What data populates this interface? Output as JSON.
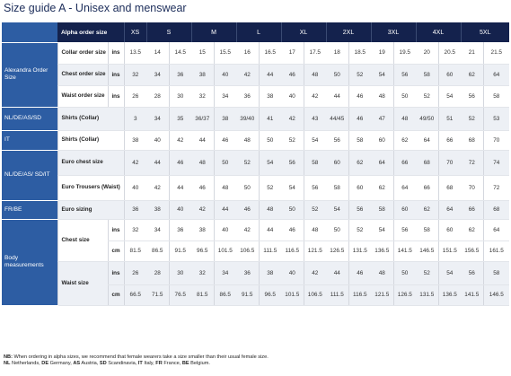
{
  "title": "Size guide A - Unisex and menswear",
  "header": {
    "label": "Alpha order size",
    "sizes": [
      "XS",
      "S",
      "M",
      "L",
      "XL",
      "2XL",
      "3XL",
      "4XL",
      "5XL"
    ]
  },
  "sections": {
    "alexandra": "Alexandra Order Size",
    "nl": "NL/DE/AS/SD",
    "it": "IT",
    "nlde": "NL/DE/AS/ SD/IT",
    "frbe": "FR/BE",
    "body": "Body measurements"
  },
  "rows": [
    {
      "label": "Collar order size",
      "unit": "ins",
      "values": [
        "13.5",
        "14",
        "14.5",
        "15",
        "15.5",
        "16",
        "16.5",
        "17",
        "17.5",
        "18",
        "18.5",
        "19",
        "19.5",
        "20",
        "20.5",
        "21",
        "21.5"
      ]
    },
    {
      "label": "Chest order size",
      "unit": "ins",
      "values": [
        "32",
        "34",
        "36",
        "38",
        "40",
        "42",
        "44",
        "46",
        "48",
        "50",
        "52",
        "54",
        "56",
        "58",
        "60",
        "62",
        "64"
      ]
    },
    {
      "label": "Waist order size",
      "unit": "ins",
      "values": [
        "26",
        "28",
        "30",
        "32",
        "34",
        "36",
        "38",
        "40",
        "42",
        "44",
        "46",
        "48",
        "50",
        "52",
        "54",
        "56",
        "58"
      ]
    },
    {
      "label": "Shirts (Collar)",
      "unit": "",
      "values": [
        "3",
        "34",
        "35",
        "36/37",
        "38",
        "39/40",
        "41",
        "42",
        "43",
        "44/45",
        "46",
        "47",
        "48",
        "49/50",
        "51",
        "52",
        "53"
      ]
    },
    {
      "label": "Shirts (Collar)",
      "unit": "",
      "values": [
        "38",
        "40",
        "42",
        "44",
        "46",
        "48",
        "50",
        "52",
        "54",
        "56",
        "58",
        "60",
        "62",
        "64",
        "66",
        "68",
        "70"
      ]
    },
    {
      "label": "Euro chest size",
      "unit": "",
      "values": [
        "42",
        "44",
        "46",
        "48",
        "50",
        "52",
        "54",
        "56",
        "58",
        "60",
        "62",
        "64",
        "66",
        "68",
        "70",
        "72",
        "74"
      ]
    },
    {
      "label": "Euro Trousers (Waist)",
      "unit": "",
      "values": [
        "40",
        "42",
        "44",
        "46",
        "48",
        "50",
        "52",
        "54",
        "56",
        "58",
        "60",
        "62",
        "64",
        "66",
        "68",
        "70",
        "72"
      ]
    },
    {
      "label": "Euro sizing",
      "unit": "",
      "values": [
        "36",
        "38",
        "40",
        "42",
        "44",
        "46",
        "48",
        "50",
        "52",
        "54",
        "56",
        "58",
        "60",
        "62",
        "64",
        "66",
        "68"
      ]
    },
    {
      "label": "Chest size",
      "unit": "ins",
      "values": [
        "32",
        "34",
        "36",
        "38",
        "40",
        "42",
        "44",
        "46",
        "48",
        "50",
        "52",
        "54",
        "56",
        "58",
        "60",
        "62",
        "64"
      ]
    },
    {
      "label": "",
      "unit": "cm",
      "values": [
        "81.5",
        "86.5",
        "91.5",
        "96.5",
        "101.5",
        "106.5",
        "111.5",
        "116.5",
        "121.5",
        "126.5",
        "131.5",
        "136.5",
        "141.5",
        "146.5",
        "151.5",
        "156.5",
        "161.5"
      ]
    },
    {
      "label": "Waist size",
      "unit": "ins",
      "values": [
        "26",
        "28",
        "30",
        "32",
        "34",
        "36",
        "38",
        "40",
        "42",
        "44",
        "46",
        "48",
        "50",
        "52",
        "54",
        "56",
        "58"
      ]
    },
    {
      "label": "",
      "unit": "cm",
      "values": [
        "66.5",
        "71.5",
        "76.5",
        "81.5",
        "86.5",
        "91.5",
        "96.5",
        "101.5",
        "106.5",
        "111.5",
        "116.5",
        "121.5",
        "126.5",
        "131.5",
        "136.5",
        "141.5",
        "146.5"
      ]
    }
  ],
  "footnote": {
    "nb_tag": "NB:",
    "nb_text": " When ordering in alpha sizes, we recommend that female wearers take a size smaller than their usual female size.",
    "codes": [
      {
        "code": "NL",
        "name": " Netherlands, "
      },
      {
        "code": "DE",
        "name": " Germany, "
      },
      {
        "code": "AS",
        "name": " Austria, "
      },
      {
        "code": "SD",
        "name": " Scandinavia, "
      },
      {
        "code": "IT",
        "name": " Italy, "
      },
      {
        "code": "FR",
        "name": " France, "
      },
      {
        "code": "BE",
        "name": " Belgium."
      }
    ]
  }
}
